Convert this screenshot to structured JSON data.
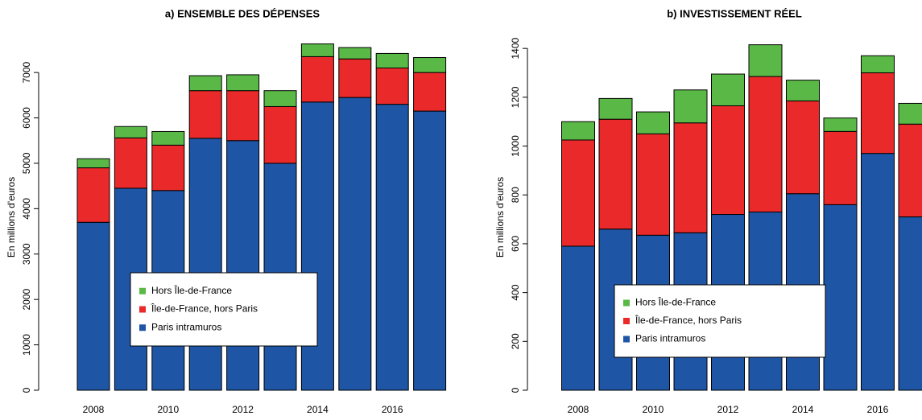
{
  "chart_data": [
    {
      "type": "stacked-bar",
      "title": "a) ENSEMBLE DES DÉPENSES",
      "y_label": "En millions d'euros",
      "categories": [
        2008,
        null,
        2010,
        null,
        2012,
        null,
        2014,
        null,
        2016,
        null
      ],
      "series": [
        {
          "name": "Paris intramuros",
          "color": "#1f55a5",
          "values": [
            3700,
            4450,
            4400,
            5550,
            5500,
            5000,
            6350,
            6450,
            6300,
            6150
          ]
        },
        {
          "name": "Île-de-France, hors Paris",
          "color": "#ea2a2a",
          "values": [
            1200,
            1110,
            1000,
            1050,
            1100,
            1250,
            1000,
            850,
            800,
            850
          ]
        },
        {
          "name": "Hors Île-de-France",
          "color": "#5ab946",
          "values": [
            200,
            250,
            300,
            330,
            350,
            350,
            280,
            250,
            320,
            330
          ]
        }
      ],
      "ylim": [
        0,
        7800
      ],
      "yticks": [
        0,
        1000,
        2000,
        3000,
        4000,
        5000,
        6000,
        7000
      ]
    },
    {
      "type": "stacked-bar",
      "title": "b) INVESTISSEMENT RÉEL",
      "y_label": "En millions d'euros",
      "categories": [
        2008,
        null,
        2010,
        null,
        2012,
        null,
        2014,
        null,
        2016,
        null
      ],
      "series": [
        {
          "name": "Paris intramuros",
          "color": "#1f55a5",
          "values": [
            590,
            660,
            635,
            645,
            720,
            730,
            805,
            760,
            970,
            710
          ]
        },
        {
          "name": "Île-de-France, hors Paris",
          "color": "#ea2a2a",
          "values": [
            435,
            450,
            415,
            450,
            445,
            555,
            380,
            300,
            330,
            380
          ]
        },
        {
          "name": "Hors Île-de-France",
          "color": "#5ab946",
          "values": [
            75,
            85,
            90,
            135,
            130,
            130,
            85,
            55,
            70,
            85
          ]
        }
      ],
      "ylim": [
        0,
        1450
      ],
      "yticks": [
        0,
        200,
        400,
        600,
        800,
        1000,
        1200,
        1400
      ]
    }
  ]
}
